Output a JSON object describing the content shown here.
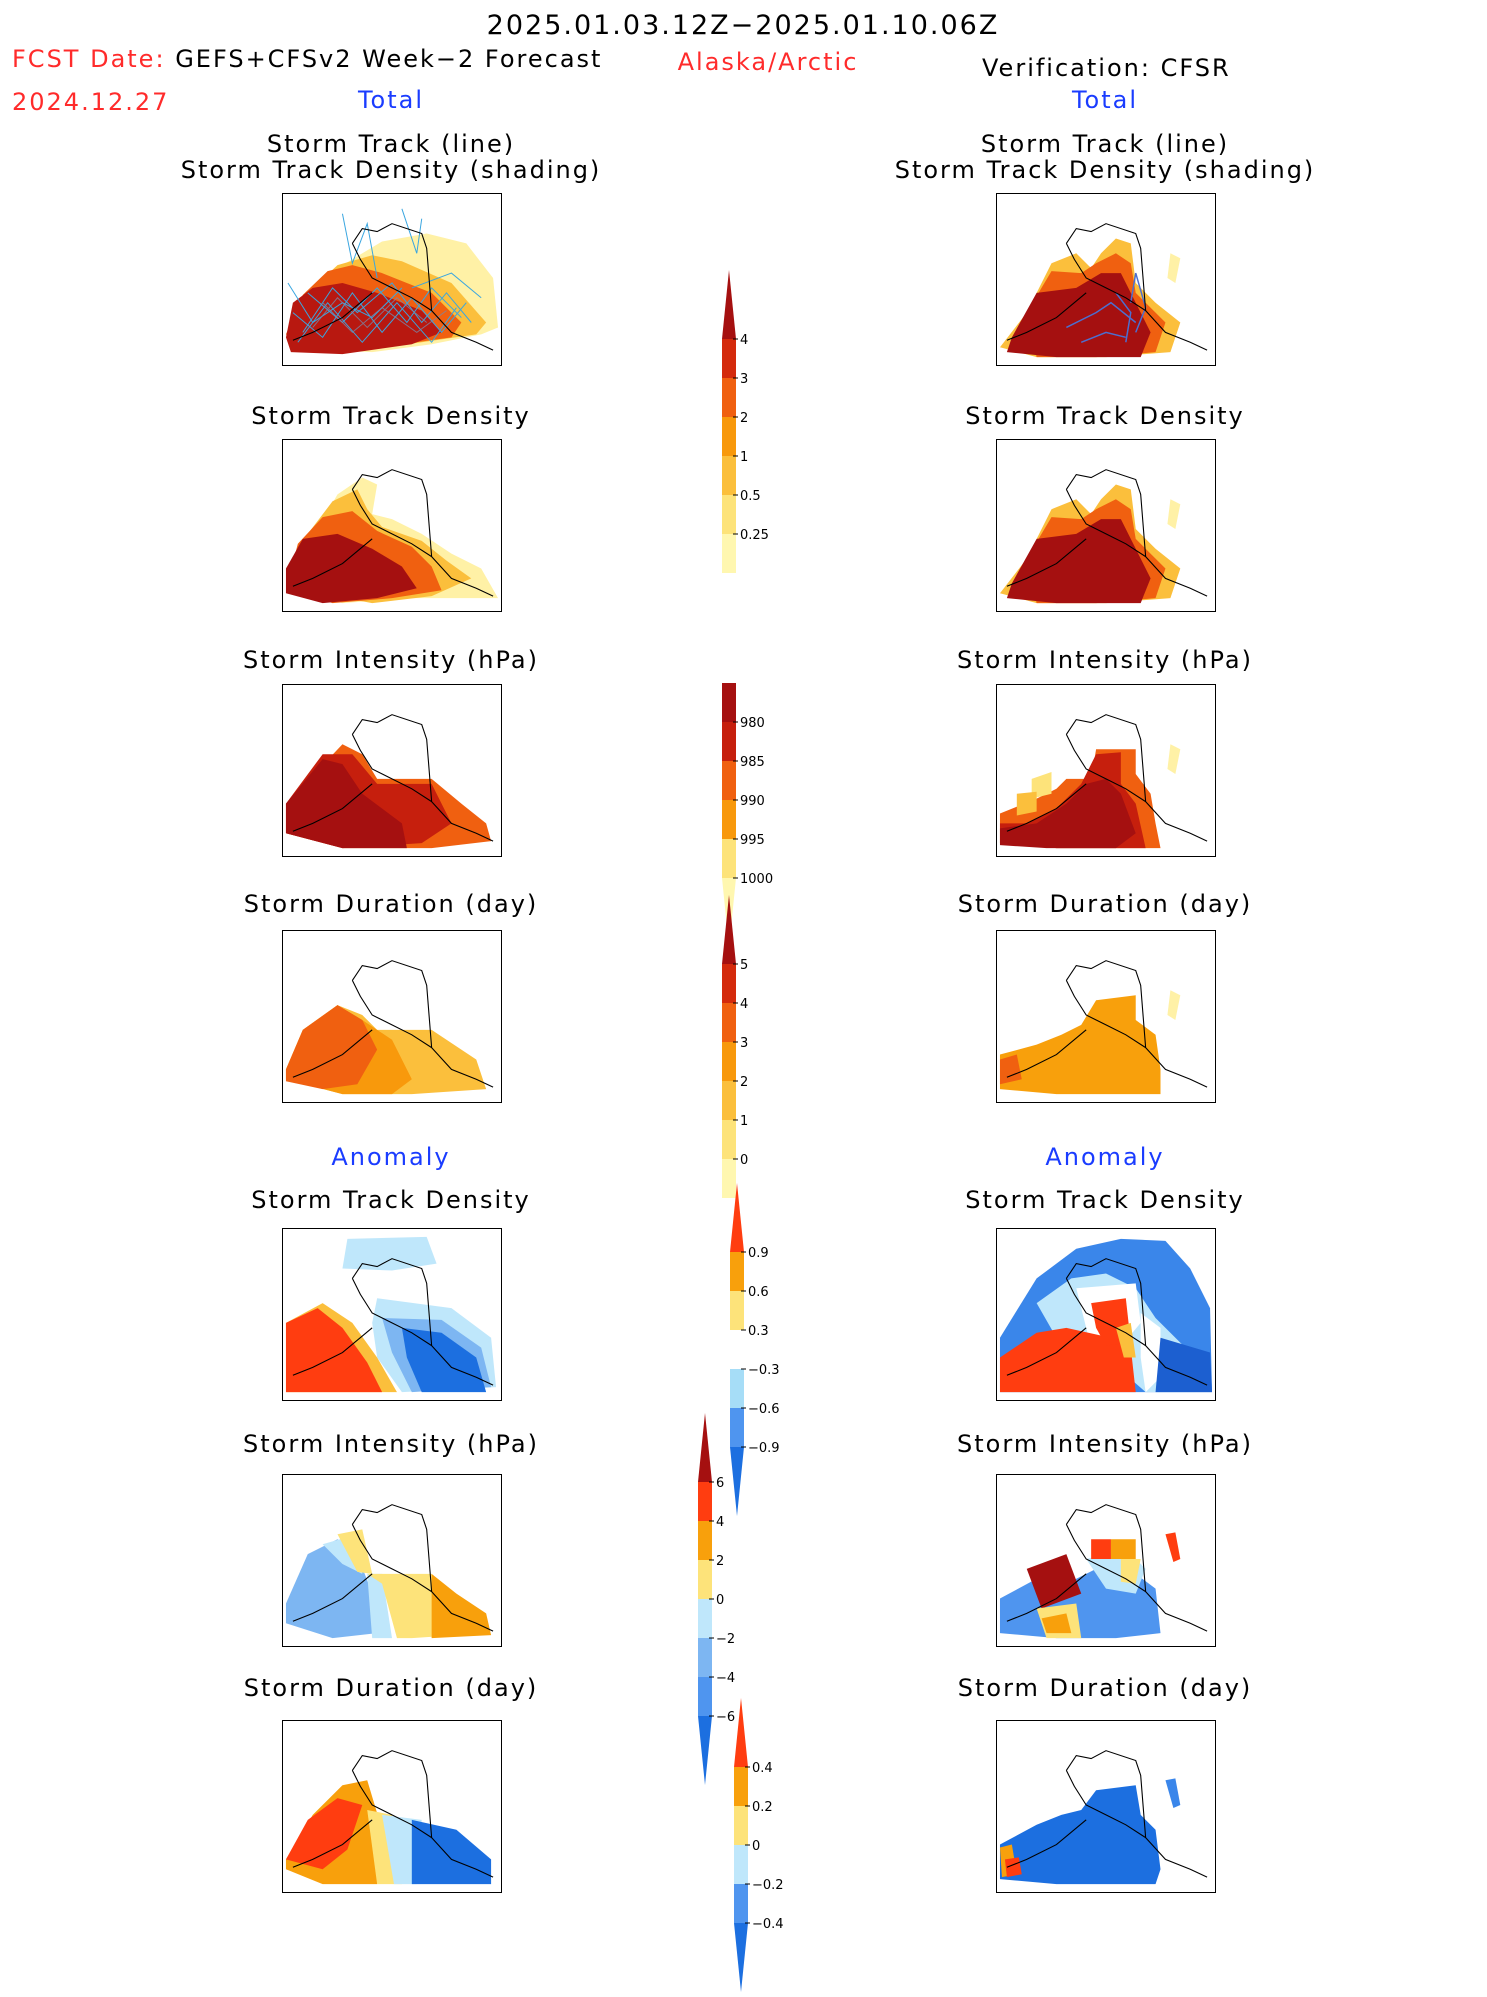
{
  "header": {
    "period": "2025.01.03.12Z−2025.01.10.06Z",
    "fcst_label": "FCST Date:",
    "fcst_model": "GEFS+CFSv2 Week−2 Forecast",
    "region": "Alaska/Arctic",
    "verification": "Verification: CFSR",
    "fcst_date": "2024.12.27",
    "total_left": "Total",
    "total_right": "Total",
    "anomaly_left": "Anomaly",
    "anomaly_right": "Anomaly"
  },
  "panel_titles": {
    "track_line": "Storm Track (line)",
    "track_shading": "Storm Track Density (shading)",
    "density": "Storm Track Density",
    "intensity": "Storm Intensity (hPa)",
    "duration": "Storm Duration (day)"
  },
  "colorbars": {
    "density_total": {
      "ticks": [
        "0.25",
        "0.5",
        "1",
        "2",
        "3",
        "4"
      ],
      "colors": [
        "#fff7b0",
        "#fde37a",
        "#fbbf3c",
        "#f8990c",
        "#f06010",
        "#d42a0c",
        "#a51010"
      ]
    },
    "intensity_total": {
      "ticks": [
        "980",
        "985",
        "990",
        "995",
        "1000"
      ],
      "colors": [
        "#a51010",
        "#c61f0d",
        "#f06010",
        "#f8990c",
        "#fde37a",
        "#fff7b0"
      ]
    },
    "duration_total": {
      "ticks": [
        "0",
        "1",
        "2",
        "3",
        "4",
        "5"
      ],
      "colors": [
        "#fff7b0",
        "#fde37a",
        "#fbbf3c",
        "#f8990c",
        "#f06010",
        "#d42a0c",
        "#a51010"
      ]
    },
    "density_anom": {
      "ticks": [
        "−0.9",
        "−0.6",
        "−0.3",
        "0.3",
        "0.6",
        "0.9"
      ],
      "colors": [
        "#1c6fe0",
        "#4f95ef",
        "#a6ddf7",
        "#ffffff",
        "#fde37a",
        "#f8a00c",
        "#ff3d10"
      ]
    },
    "intensity_anom": {
      "ticks": [
        "−6",
        "−4",
        "−2",
        "0",
        "2",
        "4",
        "6"
      ],
      "colors": [
        "#1c6fe0",
        "#4f95ef",
        "#7db6f2",
        "#bfe7fb",
        "#fde37a",
        "#f8a00c",
        "#ff3d10",
        "#a51010"
      ]
    },
    "duration_anom": {
      "ticks": [
        "−0.4",
        "−0.2",
        "0",
        "0.2",
        "0.4"
      ],
      "colors": [
        "#1c6fe0",
        "#4f95ef",
        "#bfe7fb",
        "#fde37a",
        "#f8a00c",
        "#ff3d10"
      ]
    }
  }
}
